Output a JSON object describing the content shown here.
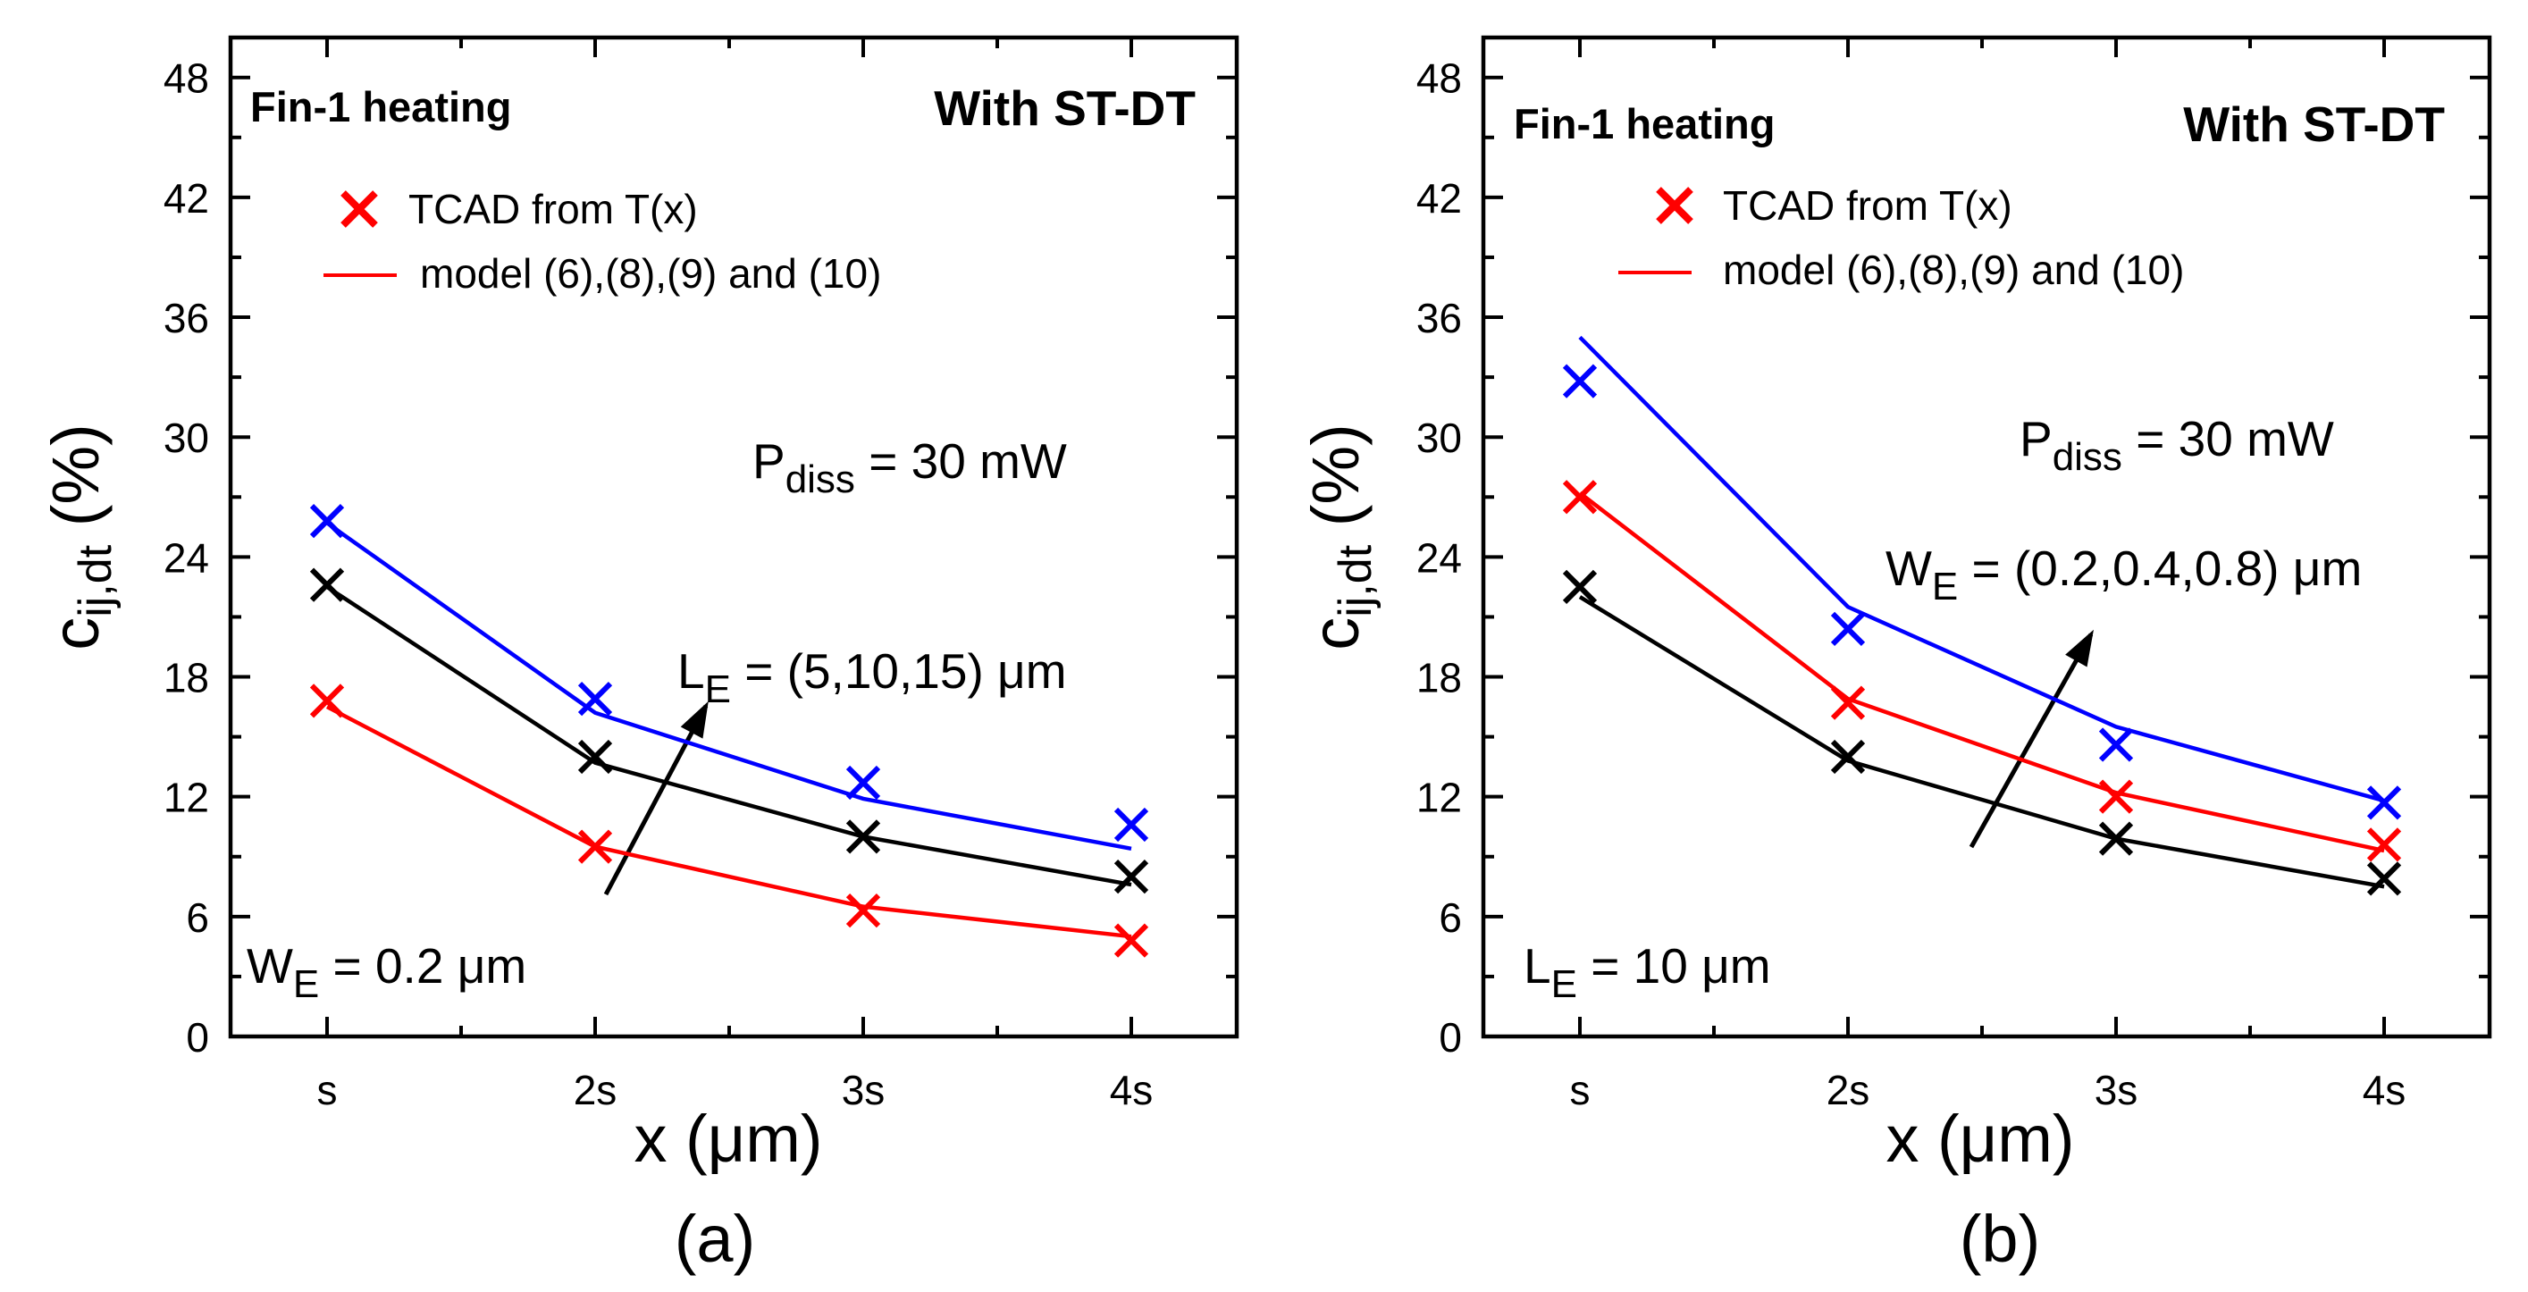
{
  "chart_data": [
    {
      "type": "line",
      "panel_label": "(a)",
      "xlabel": "x (μm)",
      "ylabel": {
        "main": "c",
        "sub": "ij,dt",
        "suffix": " (%)"
      },
      "categories": [
        "s",
        "2s",
        "3s",
        "4s"
      ],
      "ylim": [
        0,
        50
      ],
      "yticks": [
        0,
        6,
        12,
        18,
        24,
        30,
        36,
        42,
        48
      ],
      "heating_label": "Fin-1 heating",
      "method_label": "With ST-DT",
      "legend": {
        "marker_label": "TCAD from T(x)",
        "line_label": "model (6),(8),(9) and (10)"
      },
      "annotations": {
        "power": {
          "main": "P",
          "sub": "diss",
          "rest": " = 30 mW"
        },
        "sweep": {
          "main": "L",
          "sub": "E",
          "rest": " = (5,10,15) μm"
        },
        "fixed": {
          "main": "W",
          "sub": "E",
          "rest": " = 0.2 μm"
        }
      },
      "series": [
        {
          "name": "L_E = 5 μm",
          "color": "#ff0000",
          "tcad": [
            16.8,
            9.5,
            6.3,
            4.8
          ],
          "model": [
            16.5,
            9.5,
            6.5,
            5.0
          ]
        },
        {
          "name": "L_E = 10 μm",
          "color": "#000000",
          "tcad": [
            22.6,
            14.0,
            10.0,
            8.0
          ],
          "model": [
            22.5,
            13.7,
            10.0,
            7.6
          ]
        },
        {
          "name": "L_E = 15 μm",
          "color": "#0000ff",
          "tcad": [
            25.8,
            16.9,
            12.7,
            10.6
          ],
          "model": [
            25.7,
            16.2,
            11.9,
            9.4
          ]
        }
      ]
    },
    {
      "type": "line",
      "panel_label": "(b)",
      "xlabel": "x (μm)",
      "ylabel": {
        "main": "c",
        "sub": "ij,dt",
        "suffix": " (%)"
      },
      "categories": [
        "s",
        "2s",
        "3s",
        "4s"
      ],
      "ylim": [
        0,
        50
      ],
      "yticks": [
        0,
        6,
        12,
        18,
        24,
        30,
        36,
        42,
        48
      ],
      "heating_label": "Fin-1 heating",
      "method_label": "With ST-DT",
      "legend": {
        "marker_label": "TCAD from T(x)",
        "line_label": "model (6),(8),(9) and (10)"
      },
      "annotations": {
        "power": {
          "main": "P",
          "sub": "diss",
          "rest": " = 30 mW"
        },
        "sweep": {
          "main": "W",
          "sub": "E",
          "rest": " = (0.2,0.4,0.8) μm"
        },
        "fixed": {
          "main": "L",
          "sub": "E",
          "rest": " = 10 μm"
        }
      },
      "series": [
        {
          "name": "W_E = 0.2 μm",
          "color": "#000000",
          "tcad": [
            22.5,
            14.0,
            9.9,
            7.9
          ],
          "model": [
            22.0,
            13.8,
            9.9,
            7.5
          ]
        },
        {
          "name": "W_E = 0.4 μm",
          "color": "#ff0000",
          "tcad": [
            27.0,
            16.7,
            12.0,
            9.6
          ],
          "model": [
            27.2,
            16.9,
            12.2,
            9.3
          ]
        },
        {
          "name": "W_E = 0.8 μm",
          "color": "#0000ff",
          "tcad": [
            32.8,
            20.4,
            14.6,
            11.7
          ],
          "model": [
            35.0,
            21.5,
            15.5,
            11.8
          ]
        }
      ]
    }
  ]
}
